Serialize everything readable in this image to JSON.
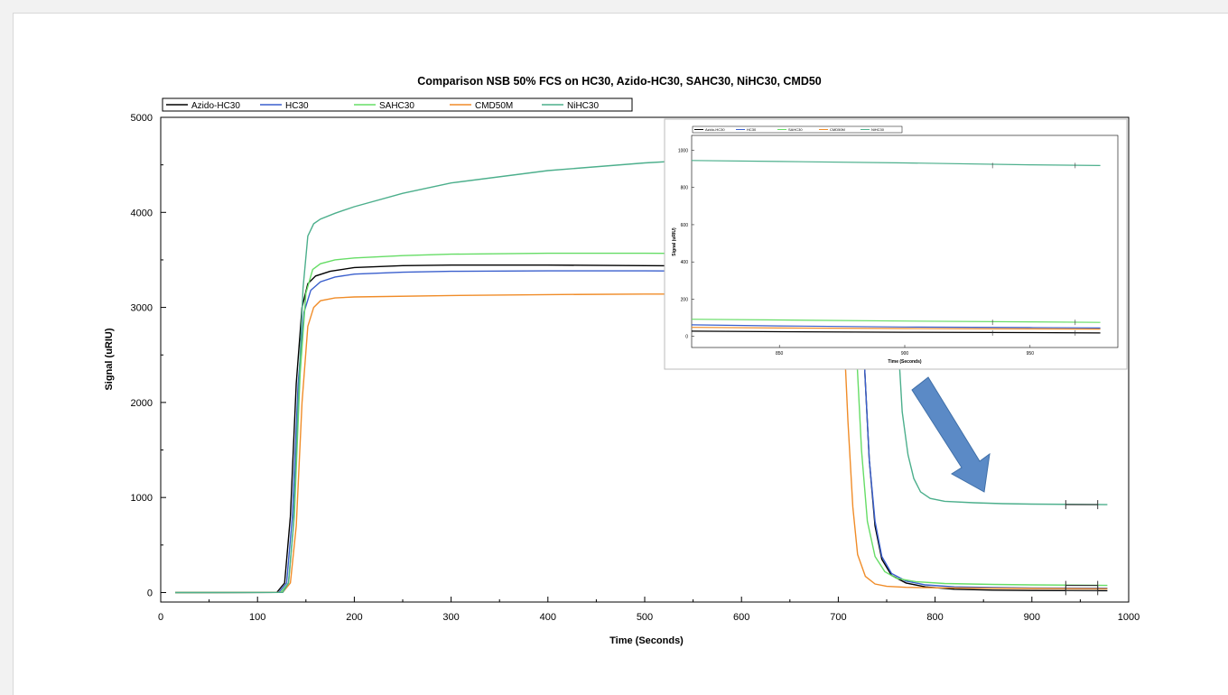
{
  "chart_data": [
    {
      "type": "line",
      "title": "Comparison NSB 50% FCS on HC30, Azido-HC30, SAHC30, NiHC30, CMD50",
      "xlabel": "Time (Seconds)",
      "ylabel": "Signal (uRIU)",
      "xlim": [
        0,
        1000
      ],
      "ylim": [
        -100,
        5000
      ],
      "x_ticks": [
        "0",
        "100",
        "200",
        "300",
        "400",
        "500",
        "600",
        "700",
        "800",
        "900",
        "1000"
      ],
      "y_ticks": [
        "0",
        "1000",
        "2000",
        "3000",
        "4000",
        "5000"
      ],
      "grid": false,
      "legend_position": "top-left",
      "series": [
        {
          "name": "Azido-HC30",
          "color": "#000000",
          "points": [
            [
              15,
              0
            ],
            [
              120,
              2
            ],
            [
              128,
              100
            ],
            [
              134,
              800
            ],
            [
              140,
              2200
            ],
            [
              146,
              3000
            ],
            [
              152,
              3250
            ],
            [
              160,
              3330
            ],
            [
              175,
              3380
            ],
            [
              200,
              3420
            ],
            [
              250,
              3440
            ],
            [
              300,
              3445
            ],
            [
              400,
              3445
            ],
            [
              500,
              3440
            ],
            [
              600,
              3435
            ],
            [
              700,
              3430
            ],
            [
              718,
              3410
            ],
            [
              726,
              2600
            ],
            [
              732,
              1400
            ],
            [
              738,
              700
            ],
            [
              745,
              350
            ],
            [
              755,
              180
            ],
            [
              770,
              100
            ],
            [
              790,
              60
            ],
            [
              820,
              35
            ],
            [
              860,
              25
            ],
            [
              900,
              22
            ],
            [
              978,
              20
            ]
          ]
        },
        {
          "name": "HC30",
          "color": "#3a5fcd",
          "points": [
            [
              15,
              0
            ],
            [
              122,
              2
            ],
            [
              130,
              100
            ],
            [
              136,
              800
            ],
            [
              142,
              2200
            ],
            [
              148,
              2950
            ],
            [
              155,
              3180
            ],
            [
              165,
              3270
            ],
            [
              180,
              3320
            ],
            [
              200,
              3350
            ],
            [
              250,
              3370
            ],
            [
              300,
              3380
            ],
            [
              400,
              3385
            ],
            [
              500,
              3385
            ],
            [
              600,
              3380
            ],
            [
              700,
              3375
            ],
            [
              718,
              3350
            ],
            [
              726,
              2600
            ],
            [
              732,
              1400
            ],
            [
              738,
              750
            ],
            [
              745,
              380
            ],
            [
              755,
              200
            ],
            [
              770,
              120
            ],
            [
              790,
              80
            ],
            [
              820,
              60
            ],
            [
              860,
              52
            ],
            [
              900,
              48
            ],
            [
              978,
              45
            ]
          ]
        },
        {
          "name": "SAHC30",
          "color": "#66dd66",
          "points": [
            [
              15,
              0
            ],
            [
              124,
              2
            ],
            [
              132,
              100
            ],
            [
              138,
              800
            ],
            [
              144,
              2300
            ],
            [
              150,
              3150
            ],
            [
              157,
              3400
            ],
            [
              165,
              3460
            ],
            [
              180,
              3500
            ],
            [
              200,
              3520
            ],
            [
              250,
              3545
            ],
            [
              300,
              3560
            ],
            [
              400,
              3570
            ],
            [
              500,
              3570
            ],
            [
              600,
              3565
            ],
            [
              700,
              3560
            ],
            [
              712,
              3540
            ],
            [
              718,
              2700
            ],
            [
              724,
              1500
            ],
            [
              730,
              750
            ],
            [
              738,
              380
            ],
            [
              748,
              220
            ],
            [
              760,
              150
            ],
            [
              780,
              115
            ],
            [
              810,
              95
            ],
            [
              860,
              85
            ],
            [
              900,
              80
            ],
            [
              978,
              75
            ]
          ]
        },
        {
          "name": "CMD50M",
          "color": "#f08c28",
          "points": [
            [
              15,
              0
            ],
            [
              126,
              2
            ],
            [
              134,
              100
            ],
            [
              140,
              700
            ],
            [
              146,
              2000
            ],
            [
              152,
              2800
            ],
            [
              158,
              3000
            ],
            [
              165,
              3070
            ],
            [
              180,
              3100
            ],
            [
              200,
              3110
            ],
            [
              300,
              3125
            ],
            [
              400,
              3135
            ],
            [
              500,
              3140
            ],
            [
              600,
              3140
            ],
            [
              700,
              3135
            ],
            [
              705,
              2900
            ],
            [
              710,
              1800
            ],
            [
              715,
              900
            ],
            [
              720,
              400
            ],
            [
              728,
              170
            ],
            [
              738,
              90
            ],
            [
              750,
              65
            ],
            [
              770,
              55
            ],
            [
              800,
              50
            ],
            [
              860,
              45
            ],
            [
              900,
              42
            ],
            [
              978,
              40
            ]
          ]
        },
        {
          "name": "NiHC30",
          "color": "#4caf8c",
          "points": [
            [
              15,
              0
            ],
            [
              126,
              2
            ],
            [
              132,
              100
            ],
            [
              137,
              700
            ],
            [
              142,
              2000
            ],
            [
              147,
              3200
            ],
            [
              152,
              3750
            ],
            [
              158,
              3880
            ],
            [
              165,
              3930
            ],
            [
              180,
              3990
            ],
            [
              200,
              4060
            ],
            [
              250,
              4200
            ],
            [
              300,
              4310
            ],
            [
              400,
              4440
            ],
            [
              500,
              4520
            ],
            [
              550,
              4550
            ],
            [
              600,
              4560
            ],
            [
              700,
              4590
            ],
            [
              755,
              4600
            ],
            [
              758,
              3800
            ],
            [
              762,
              2600
            ],
            [
              766,
              1900
            ],
            [
              772,
              1450
            ],
            [
              778,
              1200
            ],
            [
              785,
              1060
            ],
            [
              795,
              990
            ],
            [
              810,
              960
            ],
            [
              840,
              945
            ],
            [
              870,
              935
            ],
            [
              900,
              930
            ],
            [
              978,
              925
            ]
          ]
        }
      ],
      "annotations": [
        {
          "series": "NiHC30",
          "x": [
            935,
            968
          ],
          "y": 925
        },
        {
          "series": "SAHC30",
          "x": [
            935,
            968
          ],
          "y": 75
        },
        {
          "series": "Azido-HC30",
          "x": [
            935,
            968
          ],
          "y": 20
        }
      ]
    },
    {
      "type": "line",
      "title": "",
      "xlabel": "Time (Seconds)",
      "ylabel": "Signal (uRIU)",
      "xlim": [
        815,
        985
      ],
      "ylim": [
        -60,
        1080
      ],
      "x_ticks": [
        "850",
        "900",
        "950"
      ],
      "y_ticks": [
        "0",
        "200",
        "400",
        "600",
        "800",
        "1000"
      ],
      "legend_position": "top",
      "legend": [
        "Azido-HC30",
        "HC30",
        "SAHC30",
        "CMD50M",
        "NiHC30"
      ],
      "series": [
        {
          "name": "NiHC30",
          "color": "#4caf8c",
          "points": [
            [
              815,
              945
            ],
            [
              850,
              940
            ],
            [
              900,
              932
            ],
            [
              950,
              922
            ],
            [
              978,
              918
            ]
          ]
        },
        {
          "name": "SAHC30",
          "color": "#66dd66",
          "points": [
            [
              815,
              92
            ],
            [
              850,
              88
            ],
            [
              900,
              82
            ],
            [
              950,
              78
            ],
            [
              978,
              75
            ]
          ]
        },
        {
          "name": "HC30",
          "color": "#3a5fcd",
          "points": [
            [
              815,
              62
            ],
            [
              850,
              56
            ],
            [
              900,
              50
            ],
            [
              950,
              47
            ],
            [
              978,
              45
            ]
          ]
        },
        {
          "name": "CMD50M",
          "color": "#f08c28",
          "points": [
            [
              815,
              48
            ],
            [
              850,
              45
            ],
            [
              900,
              42
            ],
            [
              950,
              40
            ],
            [
              978,
              39
            ]
          ]
        },
        {
          "name": "Azido-HC30",
          "color": "#000000",
          "points": [
            [
              815,
              28
            ],
            [
              850,
              25
            ],
            [
              900,
              22
            ],
            [
              950,
              20
            ],
            [
              978,
              18
            ]
          ]
        }
      ]
    }
  ],
  "arrow": {
    "color": "#5b8ac6",
    "stroke": "#3f6fa8"
  }
}
